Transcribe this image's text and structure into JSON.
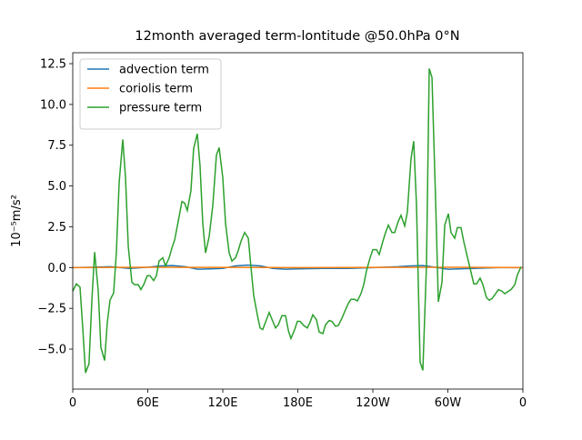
{
  "chart_data": {
    "type": "line",
    "title": "12month averaged term-lontitude @50.0hPa 0°N",
    "y_label": "10⁻⁵m/s²",
    "xlim": [
      0,
      360
    ],
    "ylim": [
      -7.45,
      13.17
    ],
    "xticks": [
      0,
      {
        "value": 60,
        "label": "60E"
      },
      {
        "value": 120,
        "label": "120E"
      },
      {
        "value": 180,
        "label": "180E"
      },
      {
        "value": 240,
        "label": "120W"
      },
      {
        "value": 300,
        "label": "60W"
      },
      {
        "value": 360,
        "label": "0"
      }
    ],
    "yticks": [
      {
        "value": -5,
        "label": "−5.0"
      },
      {
        "value": -2.5,
        "label": "−2.5"
      },
      {
        "value": 0,
        "label": "0.0"
      },
      {
        "value": 2.5,
        "label": "2.5"
      },
      {
        "value": 5,
        "label": "5.0"
      },
      {
        "value": 7.5,
        "label": "7.5"
      },
      {
        "value": 10,
        "label": "10.0"
      },
      {
        "value": 12.5,
        "label": "12.5"
      }
    ],
    "legend": "upper left",
    "series": [
      {
        "name": "advection term",
        "color": "#1f77b4",
        "x": [
          0,
          15,
          30,
          45,
          60,
          70,
          80,
          90,
          100,
          110,
          120,
          130,
          140,
          150,
          160,
          170,
          180,
          200,
          220,
          240,
          260,
          270,
          280,
          290,
          300,
          320,
          340,
          360
        ],
        "values": [
          0,
          0.02,
          0.05,
          -0.05,
          0.02,
          0.1,
          0.12,
          0.05,
          -0.1,
          -0.08,
          -0.05,
          0.1,
          0.15,
          0.1,
          -0.05,
          -0.1,
          -0.08,
          -0.05,
          -0.05,
          0,
          0.05,
          0.1,
          0.12,
          0.02,
          -0.1,
          -0.05,
          0,
          0
        ]
      },
      {
        "name": "coriolis term",
        "color": "#ff7f0e",
        "x": [
          0,
          60,
          120,
          180,
          240,
          300,
          360
        ],
        "values": [
          0,
          0.02,
          0.01,
          0,
          0.01,
          0.02,
          0
        ]
      },
      {
        "name": "pressure term",
        "color": "#2ca02c",
        "x": [
          0,
          2.9,
          5.8,
          8,
          10.2,
          13,
          15.3,
          17.5,
          20.4,
          22.5,
          25.5,
          27.6,
          29.8,
          32.7,
          34.9,
          37.1,
          40,
          42.2,
          44.4,
          47.3,
          49.5,
          52.4,
          54.5,
          56.7,
          59.6,
          61.8,
          64.7,
          66.9,
          69,
          72,
          74.2,
          77.1,
          79.3,
          81.5,
          84.4,
          87.3,
          89.5,
          91.6,
          94.5,
          96.7,
          99.6,
          101.8,
          104,
          106.2,
          109.1,
          112,
          114.9,
          117.1,
          120,
          122.2,
          125.1,
          127.3,
          130.2,
          132.4,
          134.5,
          137.5,
          140.4,
          142.5,
          144.7,
          147.6,
          149.8,
          151.9,
          154.9,
          157.1,
          160,
          162.2,
          164.4,
          167.3,
          170.2,
          172.4,
          174.5,
          177.5,
          179.6,
          181.8,
          184.7,
          187.6,
          189.8,
          192,
          194.9,
          197.1,
          200,
          202.2,
          205.1,
          207.3,
          210.2,
          212.4,
          215.3,
          217.5,
          220.4,
          222.5,
          225.5,
          227.6,
          230.5,
          232.7,
          234.9,
          237.8,
          240,
          242.9,
          245.1,
          248,
          250.2,
          252.4,
          255.3,
          257.5,
          260.4,
          262.5,
          265.5,
          267.6,
          270.5,
          272.7,
          274.9,
          277.8,
          280,
          282.9,
          285.1,
          287.3,
          290.2,
          292.4,
          295.3,
          297.5,
          300.4,
          302.5,
          305.5,
          307.6,
          310.5,
          312.7,
          315.6,
          317.8,
          320.7,
          322.9,
          325.8,
          328,
          330.9,
          333.1,
          335.3,
          338.2,
          340.4,
          343.3,
          345.5,
          348.4,
          350.5,
          353.5,
          355.6,
          358.5
        ],
        "values": [
          -1.45,
          -1.0,
          -1.2,
          -3.7,
          -6.45,
          -5.9,
          -2.0,
          0.95,
          -1.45,
          -4.9,
          -5.7,
          -3.4,
          -2.0,
          -1.55,
          0.95,
          5.2,
          7.85,
          5.5,
          1.3,
          -0.9,
          -1.05,
          -1.05,
          -1.35,
          -1.05,
          -0.5,
          -0.5,
          -0.8,
          -0.5,
          0.4,
          0.6,
          0.1,
          0.6,
          1.2,
          1.7,
          2.85,
          4.05,
          3.95,
          3.5,
          4.7,
          7.3,
          8.2,
          6.25,
          2.7,
          0.9,
          1.9,
          3.8,
          6.9,
          7.35,
          5.5,
          2.7,
          0.9,
          0.4,
          0.6,
          1.05,
          1.6,
          2.15,
          1.8,
          0.05,
          -1.7,
          -2.9,
          -3.7,
          -3.8,
          -3.2,
          -2.75,
          -3.3,
          -3.7,
          -3.5,
          -2.95,
          -2.95,
          -3.85,
          -4.35,
          -3.8,
          -3.3,
          -3.3,
          -3.55,
          -3.7,
          -3.35,
          -2.9,
          -3.2,
          -3.95,
          -4.05,
          -3.5,
          -3.25,
          -3.3,
          -3.6,
          -3.55,
          -3.1,
          -2.7,
          -2.2,
          -1.95,
          -1.95,
          -2.05,
          -1.6,
          -1.05,
          -0.2,
          0.6,
          1.1,
          1.1,
          0.8,
          1.6,
          2.15,
          2.6,
          2.15,
          2.15,
          2.85,
          3.2,
          2.55,
          3.4,
          6.65,
          7.75,
          3.85,
          -5.8,
          -6.3,
          0.2,
          12.2,
          11.65,
          4.1,
          -2.1,
          -0.9,
          2.6,
          3.3,
          2.15,
          1.8,
          2.45,
          2.45,
          1.6,
          0.65,
          -0.05,
          -1.0,
          -1.0,
          -0.65,
          -1.05,
          -1.85,
          -2.0,
          -1.9,
          -1.6,
          -1.35,
          -1.45,
          -1.6,
          -1.45,
          -1.35,
          -1.05,
          -0.45,
          0.05
        ]
      }
    ]
  }
}
